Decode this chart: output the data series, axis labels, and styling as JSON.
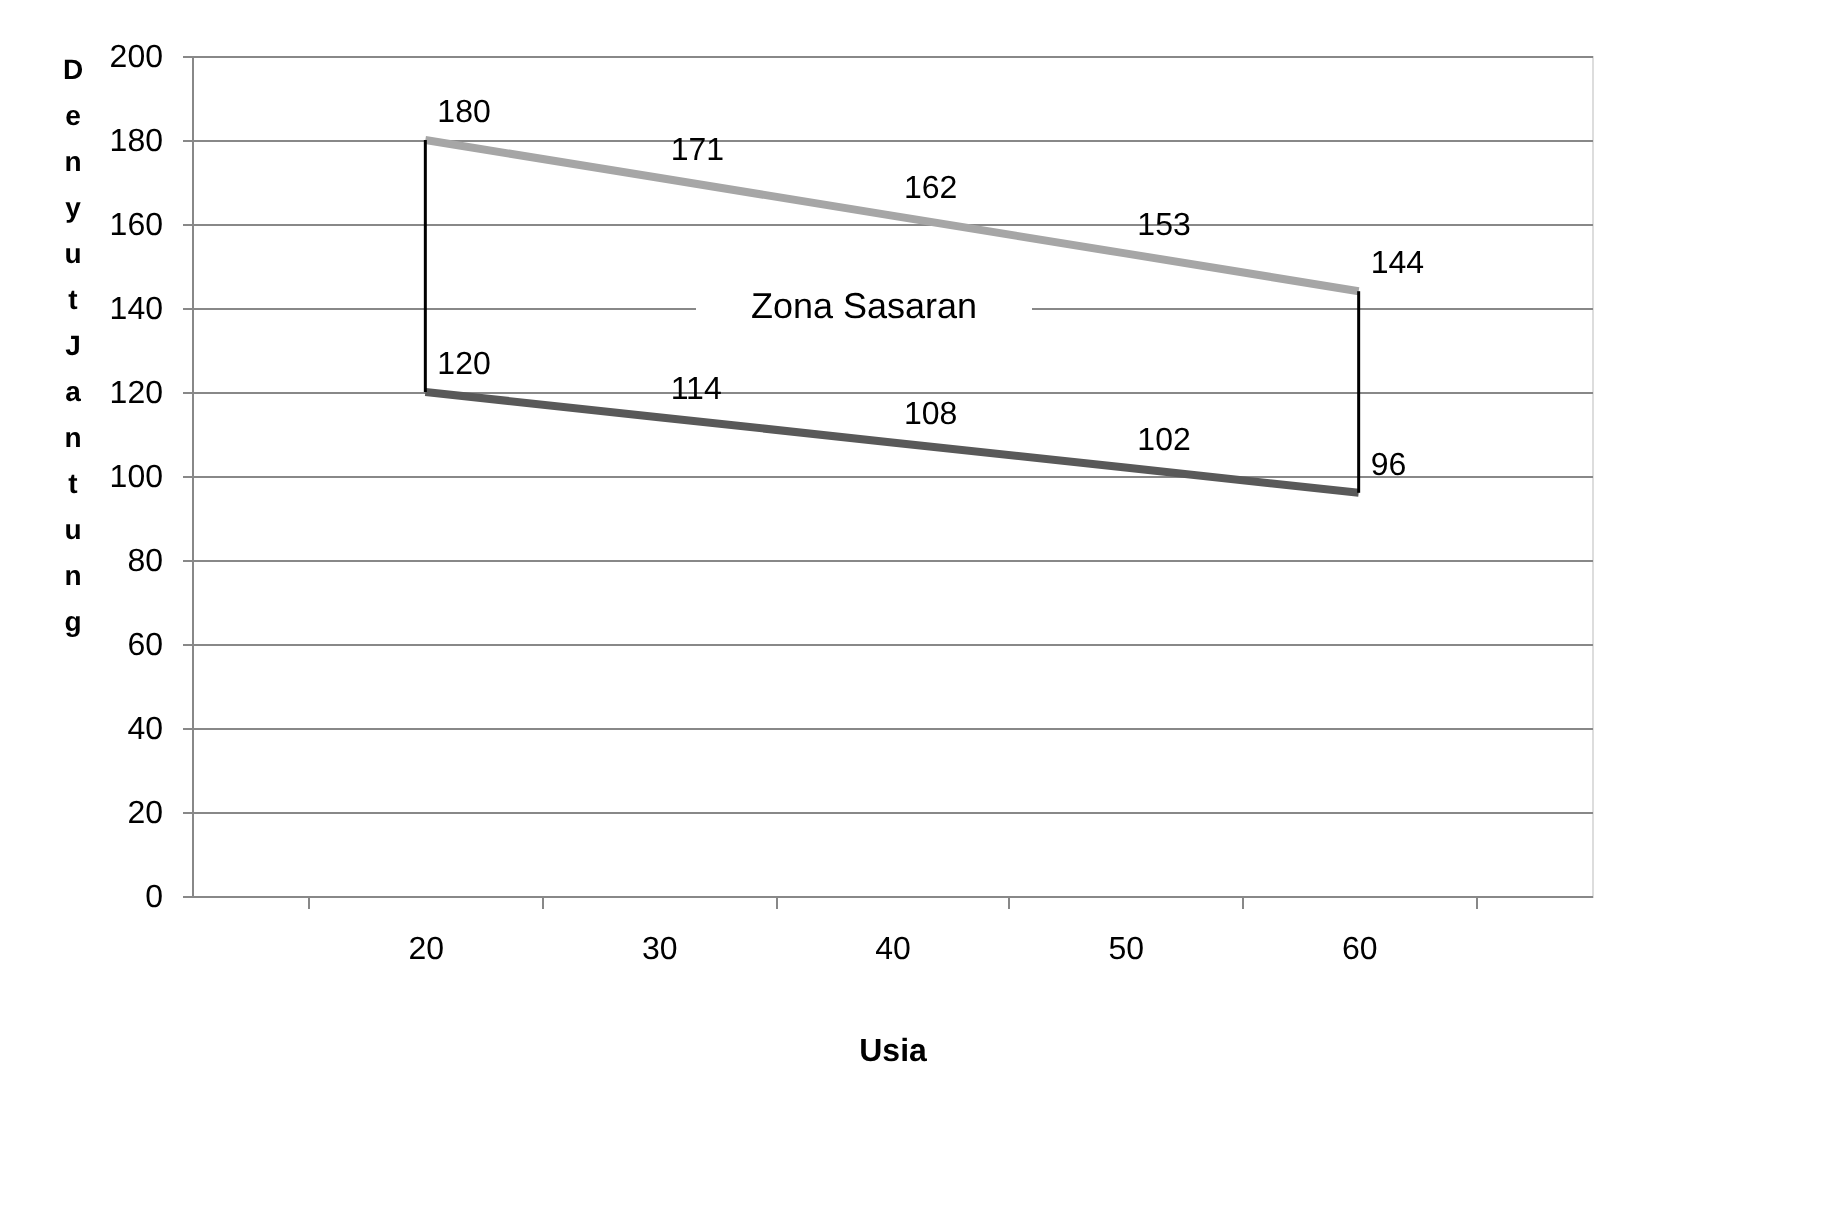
{
  "chart_data": {
    "type": "line",
    "xlabel": "Usia",
    "ylabel": "Denyut Jantung",
    "categories": [
      "20",
      "30",
      "40",
      "50",
      "60"
    ],
    "series": [
      {
        "color": "#a6a6a6",
        "values": [
          180,
          171,
          162,
          153,
          144
        ]
      },
      {
        "color": "#595959",
        "values": [
          120,
          114,
          108,
          102,
          96
        ]
      },
      {
        "color": "#000000",
        "x": [
          "20",
          "20"
        ],
        "values": [
          120,
          180
        ],
        "value_labels": [
          null,
          null
        ]
      },
      {
        "color": "#000000",
        "x": [
          "60",
          "60"
        ],
        "values": [
          96,
          144
        ],
        "value_labels": [
          null,
          null
        ]
      }
    ],
    "data_labels": true,
    "ylim": [
      0,
      200
    ],
    "yticks": [
      0,
      20,
      40,
      60,
      80,
      100,
      120,
      140,
      160,
      180,
      200
    ],
    "grid": "y",
    "marker": "none",
    "annotations": [
      "Zona Sasaran"
    ]
  }
}
